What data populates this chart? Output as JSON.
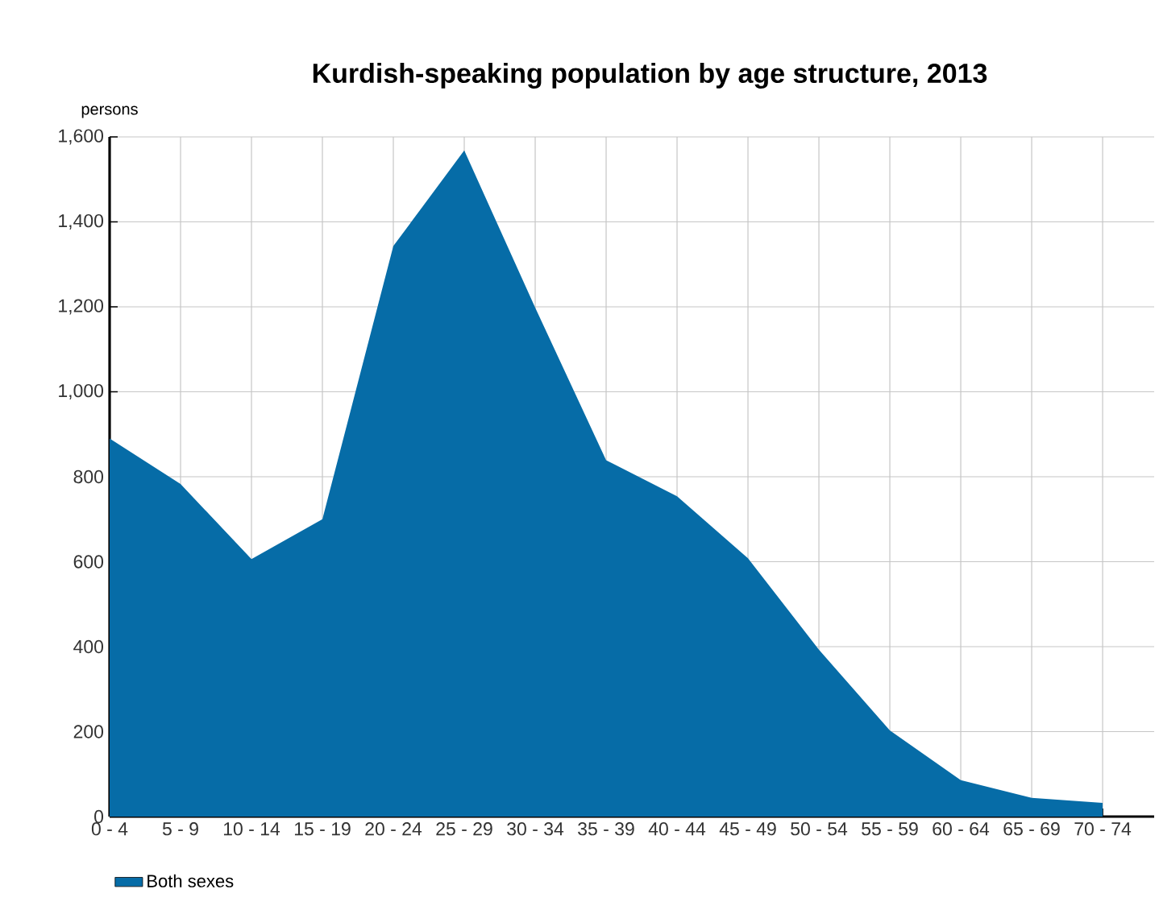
{
  "chart_data": {
    "type": "area",
    "title": "Kurdish-speaking population by age structure, 2013",
    "ylabel": "persons",
    "categories": [
      "0 - 4",
      "5 - 9",
      "10 - 14",
      "15 - 19",
      "20 - 24",
      "25 - 29",
      "30 - 34",
      "35 - 39",
      "40 - 44",
      "45 - 49",
      "50 - 54",
      "55 - 59",
      "60 - 64",
      "65 - 69",
      "70 - 74"
    ],
    "series": [
      {
        "name": "Both sexes",
        "color": "#066ca7",
        "values": [
          890,
          783,
          606,
          700,
          1343,
          1568,
          1198,
          839,
          754,
          608,
          393,
          203,
          86,
          44,
          32
        ]
      }
    ],
    "ylim": [
      0,
      1600
    ],
    "yticks": [
      0,
      200,
      400,
      600,
      800,
      {
        "value": 1000,
        "label": "1,000"
      },
      {
        "value": 1200,
        "label": "1,200"
      },
      {
        "value": 1400,
        "label": "1,400"
      },
      {
        "value": 1600,
        "label": "1,600"
      }
    ],
    "grid": true,
    "legend": "bottom left"
  }
}
